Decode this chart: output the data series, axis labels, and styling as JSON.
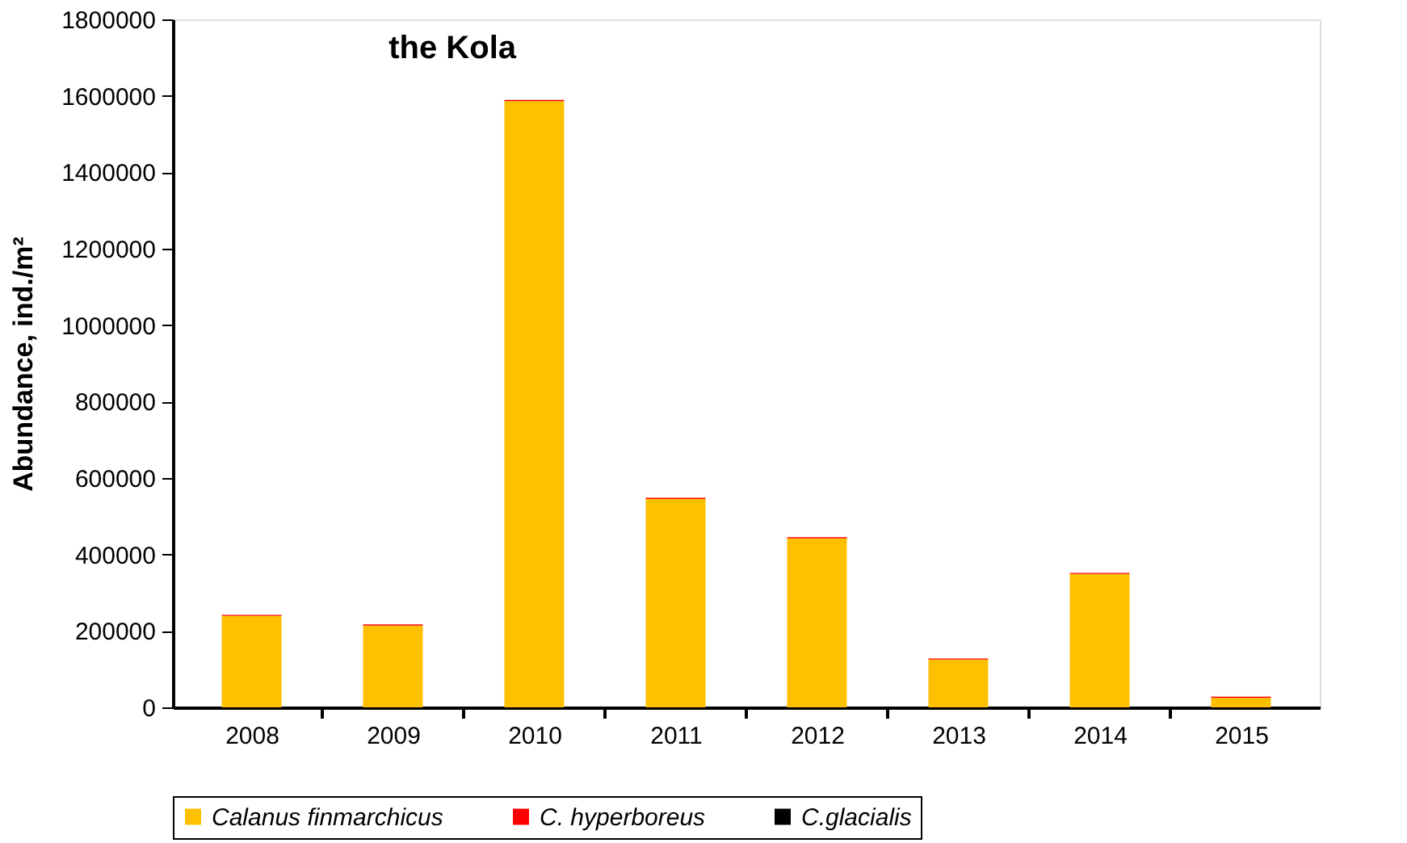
{
  "chart_data": {
    "type": "bar",
    "title": "the Kola",
    "ylabel": "Abundance, ind./m²",
    "categories": [
      "2008",
      "2009",
      "2010",
      "2011",
      "2012",
      "2013",
      "2014",
      "2015"
    ],
    "stacked": true,
    "series": [
      {
        "name": "Calanus finmarchicus",
        "color": "#ffc000",
        "values": [
          239000,
          214000,
          1586000,
          545000,
          442000,
          125000,
          349000,
          25000
        ]
      },
      {
        "name": "C. hyperboreus",
        "color": "#ff0000",
        "values": [
          3000,
          3000,
          3000,
          3000,
          3000,
          3000,
          3000,
          3000
        ]
      },
      {
        "name": "C.glacialis",
        "color": "#000000",
        "values": [
          0,
          0,
          0,
          0,
          0,
          0,
          0,
          0
        ]
      }
    ],
    "ylim": [
      0,
      1800000
    ],
    "yticks": [
      0,
      200000,
      400000,
      600000,
      800000,
      1000000,
      1200000,
      1400000,
      1600000,
      1800000
    ],
    "grid": false,
    "legend": "bottom"
  }
}
